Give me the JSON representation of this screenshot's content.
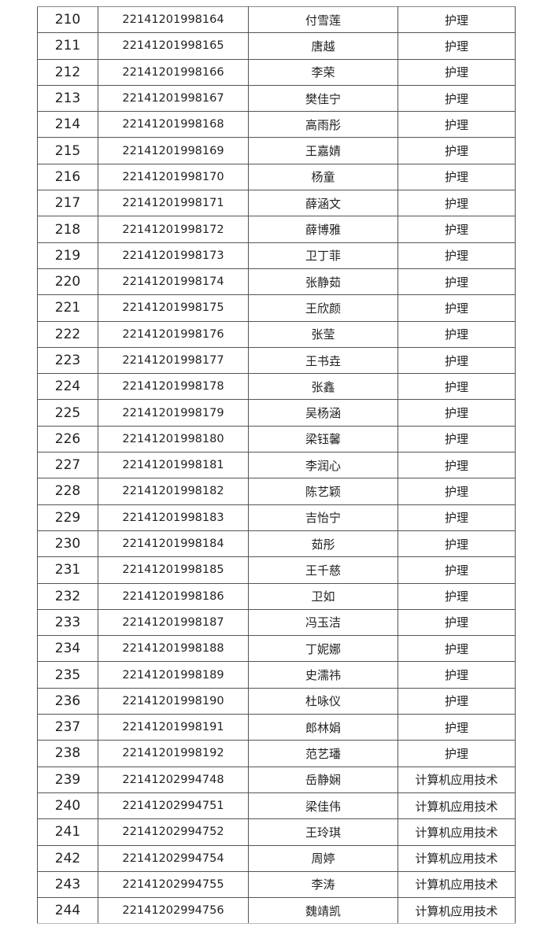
{
  "rows": [
    {
      "no": "210",
      "id": "22141201998164",
      "name": "付雪莲",
      "major": "护理"
    },
    {
      "no": "211",
      "id": "22141201998165",
      "name": "唐越",
      "major": "护理"
    },
    {
      "no": "212",
      "id": "22141201998166",
      "name": "李荣",
      "major": "护理"
    },
    {
      "no": "213",
      "id": "22141201998167",
      "name": "樊佳宁",
      "major": "护理"
    },
    {
      "no": "214",
      "id": "22141201998168",
      "name": "高雨彤",
      "major": "护理"
    },
    {
      "no": "215",
      "id": "22141201998169",
      "name": "王嘉婧",
      "major": "护理"
    },
    {
      "no": "216",
      "id": "22141201998170",
      "name": "杨童",
      "major": "护理"
    },
    {
      "no": "217",
      "id": "22141201998171",
      "name": "薛涵文",
      "major": "护理"
    },
    {
      "no": "218",
      "id": "22141201998172",
      "name": "薛博雅",
      "major": "护理"
    },
    {
      "no": "219",
      "id": "22141201998173",
      "name": "卫丁菲",
      "major": "护理"
    },
    {
      "no": "220",
      "id": "22141201998174",
      "name": "张静茹",
      "major": "护理"
    },
    {
      "no": "221",
      "id": "22141201998175",
      "name": "王欣颜",
      "major": "护理"
    },
    {
      "no": "222",
      "id": "22141201998176",
      "name": "张莹",
      "major": "护理"
    },
    {
      "no": "223",
      "id": "22141201998177",
      "name": "王书垚",
      "major": "护理"
    },
    {
      "no": "224",
      "id": "22141201998178",
      "name": "张鑫",
      "major": "护理"
    },
    {
      "no": "225",
      "id": "22141201998179",
      "name": "吴杨涵",
      "major": "护理"
    },
    {
      "no": "226",
      "id": "22141201998180",
      "name": "梁钰馨",
      "major": "护理"
    },
    {
      "no": "227",
      "id": "22141201998181",
      "name": "李润心",
      "major": "护理"
    },
    {
      "no": "228",
      "id": "22141201998182",
      "name": "陈艺颖",
      "major": "护理"
    },
    {
      "no": "229",
      "id": "22141201998183",
      "name": "吉怡宁",
      "major": "护理"
    },
    {
      "no": "230",
      "id": "22141201998184",
      "name": "茹彤",
      "major": "护理"
    },
    {
      "no": "231",
      "id": "22141201998185",
      "name": "王千慈",
      "major": "护理"
    },
    {
      "no": "232",
      "id": "22141201998186",
      "name": "卫如",
      "major": "护理"
    },
    {
      "no": "233",
      "id": "22141201998187",
      "name": "冯玉洁",
      "major": "护理"
    },
    {
      "no": "234",
      "id": "22141201998188",
      "name": "丁妮娜",
      "major": "护理"
    },
    {
      "no": "235",
      "id": "22141201998189",
      "name": "史濡祎",
      "major": "护理"
    },
    {
      "no": "236",
      "id": "22141201998190",
      "name": "杜咏仪",
      "major": "护理"
    },
    {
      "no": "237",
      "id": "22141201998191",
      "name": "郎林娟",
      "major": "护理"
    },
    {
      "no": "238",
      "id": "22141201998192",
      "name": "范艺璠",
      "major": "护理"
    },
    {
      "no": "239",
      "id": "22141202994748",
      "name": "岳静娴",
      "major": "计算机应用技术"
    },
    {
      "no": "240",
      "id": "22141202994751",
      "name": "梁佳伟",
      "major": "计算机应用技术"
    },
    {
      "no": "241",
      "id": "22141202994752",
      "name": "王玲琪",
      "major": "计算机应用技术"
    },
    {
      "no": "242",
      "id": "22141202994754",
      "name": "周婷",
      "major": "计算机应用技术"
    },
    {
      "no": "243",
      "id": "22141202994755",
      "name": "李涛",
      "major": "计算机应用技术"
    },
    {
      "no": "244",
      "id": "22141202994756",
      "name": "魏靖凯",
      "major": "计算机应用技术"
    }
  ]
}
